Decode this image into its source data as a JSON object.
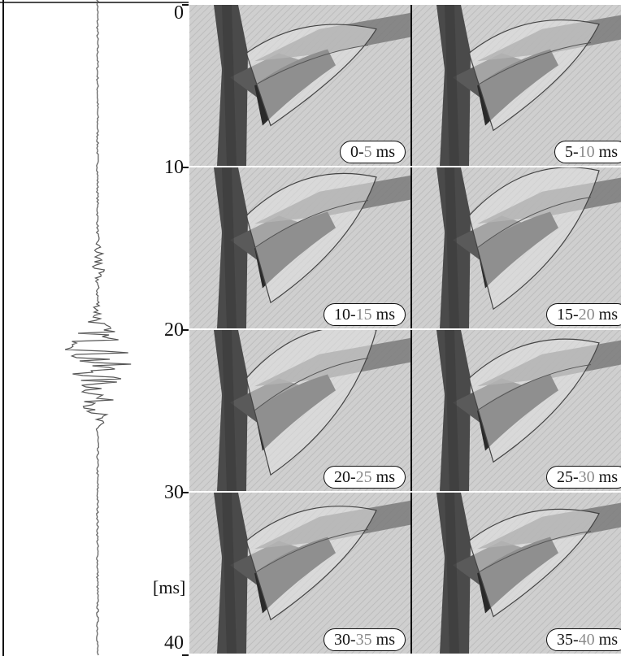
{
  "time_axis": {
    "ticks": [
      "0",
      "10",
      "20",
      "30",
      "40"
    ],
    "unit": "[ms]"
  },
  "frames": [
    {
      "start": "0",
      "end": "5",
      "unit": " ms"
    },
    {
      "start": "5",
      "end": "10",
      "unit": " ms"
    },
    {
      "start": "10",
      "end": "15",
      "unit": " ms"
    },
    {
      "start": "15",
      "end": "20",
      "unit": " ms"
    },
    {
      "start": "20",
      "end": "25",
      "unit": " ms"
    },
    {
      "start": "25",
      "end": "30",
      "unit": " ms"
    },
    {
      "start": "30",
      "end": "35",
      "unit": " ms"
    },
    {
      "start": "35",
      "end": "40",
      "unit": " ms"
    }
  ],
  "colors": {
    "trace": "#555555",
    "label_highlight": "#8a8a8a",
    "frame_background": "#c9c9c9"
  }
}
